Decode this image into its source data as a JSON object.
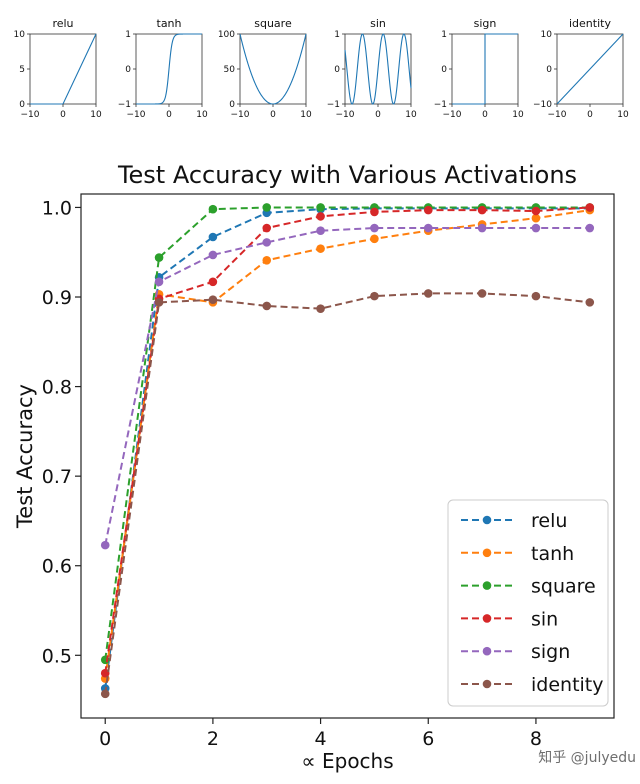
{
  "chart_data": [
    {
      "type": "line",
      "title": "relu",
      "x": [
        -10,
        0,
        10
      ],
      "y": [
        0,
        0,
        10
      ],
      "xticks": [
        "−10",
        "0",
        "10"
      ],
      "yticks": [
        "0",
        "5",
        "10"
      ],
      "xlim": [
        -10,
        10
      ],
      "ylim": [
        0,
        10
      ]
    },
    {
      "type": "line",
      "title": "tanh",
      "function": "tanh",
      "xticks": [
        "−10",
        "0",
        "10"
      ],
      "yticks": [
        "−1",
        "0",
        "1"
      ],
      "xlim": [
        -10,
        10
      ],
      "ylim": [
        -1,
        1
      ]
    },
    {
      "type": "line",
      "title": "square",
      "function": "square",
      "xticks": [
        "−10",
        "0",
        "10"
      ],
      "yticks": [
        "0",
        "50",
        "100"
      ],
      "xlim": [
        -10,
        10
      ],
      "ylim": [
        0,
        100
      ]
    },
    {
      "type": "line",
      "title": "sin",
      "function": "sin",
      "xticks": [
        "−10",
        "0",
        "10"
      ],
      "yticks": [
        "−1",
        "0",
        "1"
      ],
      "xlim": [
        -10,
        10
      ],
      "ylim": [
        -1,
        1
      ]
    },
    {
      "type": "line",
      "title": "sign",
      "x": [
        -10,
        0,
        0,
        10
      ],
      "y": [
        -1,
        -1,
        1,
        1
      ],
      "xticks": [
        "−10",
        "0",
        "10"
      ],
      "yticks": [
        "−1",
        "0",
        "1"
      ],
      "xlim": [
        -10,
        10
      ],
      "ylim": [
        -1,
        1
      ]
    },
    {
      "type": "line",
      "title": "identity",
      "x": [
        -10,
        10
      ],
      "y": [
        -10,
        10
      ],
      "xticks": [
        "−10",
        "0",
        "10"
      ],
      "yticks": [
        "−10",
        "0",
        "10"
      ],
      "xlim": [
        -10,
        10
      ],
      "ylim": [
        -10,
        10
      ]
    },
    {
      "type": "line",
      "title": "Test Accuracy with Various Activations",
      "xlabel": "∝ Epochs",
      "ylabel": "Test Accuracy",
      "x": [
        0,
        1,
        2,
        3,
        4,
        5,
        6,
        7,
        8,
        9
      ],
      "xlim": [
        -0.45,
        9.45
      ],
      "ylim": [
        0.43,
        1.015
      ],
      "xticks": [
        "0",
        "2",
        "4",
        "6",
        "8"
      ],
      "yticks": [
        "0.5",
        "0.6",
        "0.7",
        "0.8",
        "0.9",
        "1.0"
      ],
      "legend_position": "lower-right",
      "series": [
        {
          "name": "relu",
          "color": "#1f77b4",
          "values": [
            0.463,
            0.922,
            0.967,
            0.994,
            0.998,
            0.999,
            0.999,
            0.999,
            0.999,
            0.999
          ]
        },
        {
          "name": "tanh",
          "color": "#ff7f0e",
          "values": [
            0.474,
            0.903,
            0.894,
            0.941,
            0.954,
            0.965,
            0.974,
            0.981,
            0.988,
            0.997
          ]
        },
        {
          "name": "square",
          "color": "#2ca02c",
          "values": [
            0.495,
            0.944,
            0.998,
            1.0,
            1.0,
            1.0,
            1.0,
            1.0,
            1.0,
            1.0
          ]
        },
        {
          "name": "sin",
          "color": "#d62728",
          "values": [
            0.48,
            0.898,
            0.917,
            0.977,
            0.99,
            0.995,
            0.997,
            0.997,
            0.996,
            1.0
          ]
        },
        {
          "name": "sign",
          "color": "#9467bd",
          "values": [
            0.623,
            0.917,
            0.947,
            0.961,
            0.974,
            0.977,
            0.977,
            0.977,
            0.977,
            0.977
          ]
        },
        {
          "name": "identity",
          "color": "#8c564b",
          "values": [
            0.457,
            0.894,
            0.897,
            0.89,
            0.887,
            0.901,
            0.904,
            0.904,
            0.901,
            0.894
          ]
        }
      ]
    }
  ],
  "watermark": "知乎 @julyedu"
}
